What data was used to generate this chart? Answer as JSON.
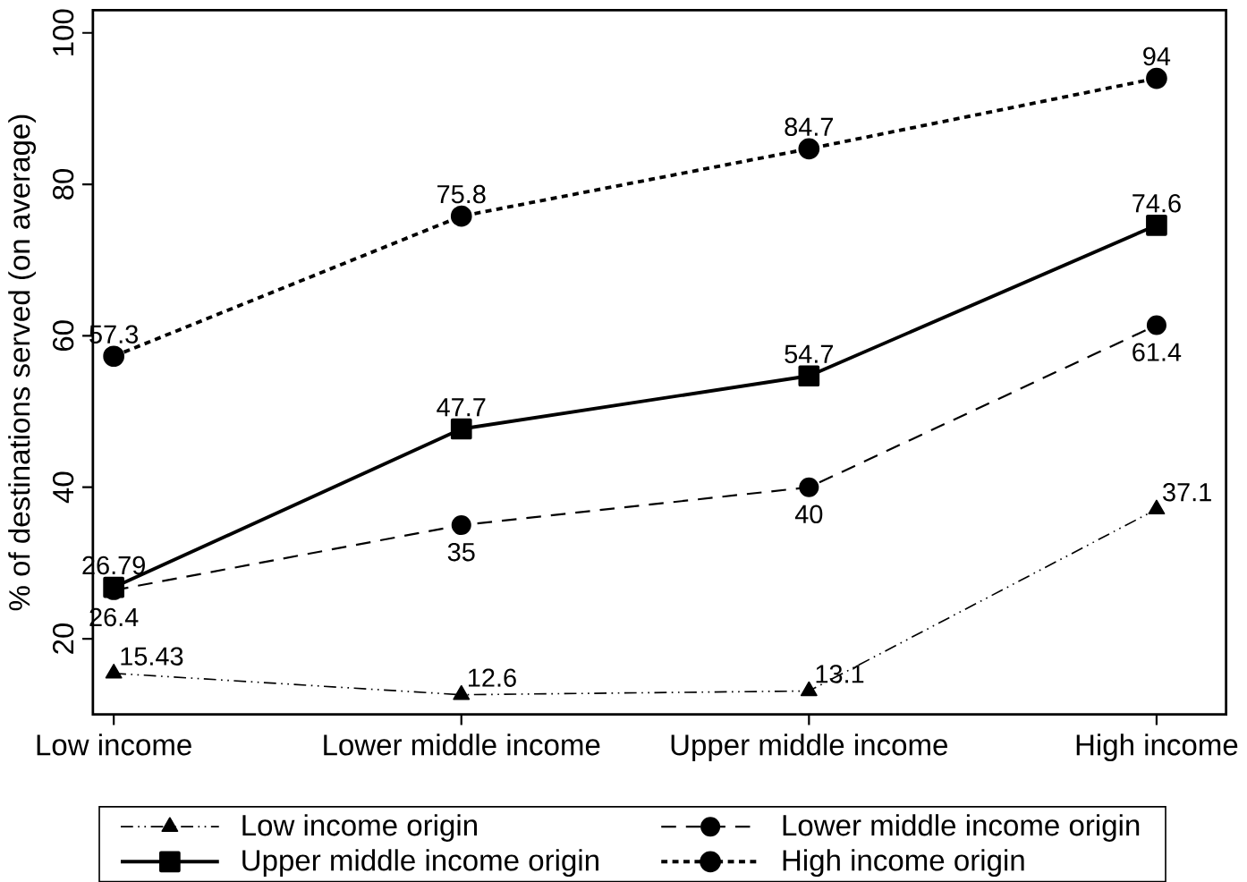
{
  "chart_data": {
    "type": "line",
    "ylabel": "% of destinations served (on average)",
    "categories": [
      "Low income",
      "Lower middle income",
      "Upper middle income",
      "High income"
    ],
    "series": [
      {
        "name": "Low income origin",
        "color": "#000000",
        "values": [
          15.43,
          12.6,
          13.1,
          37.1
        ],
        "marker": "triangle",
        "line_style": "dashdotdotted"
      },
      {
        "name": "Lower middle income origin",
        "color": "#000000",
        "values": [
          26.4,
          35,
          40,
          61.4
        ],
        "marker": "circle",
        "line_style": "dashed"
      },
      {
        "name": "Upper middle income origin",
        "color": "#000000",
        "values": [
          26.79,
          47.7,
          54.7,
          74.6
        ],
        "marker": "square",
        "line_style": "solid"
      },
      {
        "name": "High income origin",
        "color": "#000000",
        "values": [
          57.3,
          75.8,
          84.7,
          94
        ],
        "marker": "circle",
        "line_style": "dotted"
      }
    ],
    "ylim": [
      10,
      103
    ],
    "yticks": [
      20,
      40,
      60,
      80,
      100
    ],
    "grid": false,
    "legend": "bottom",
    "data_labels": true
  }
}
